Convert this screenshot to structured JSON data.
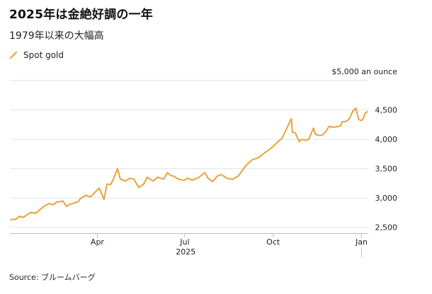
{
  "title": "2025年は金絶好調の一年",
  "subtitle": "1979年以来の大幅高",
  "source": "Source: ブルームバーグ",
  "colors": {
    "series": "#e8a33a",
    "grid": "#e3e3e3",
    "axis": "#bbbbbb"
  },
  "chart_data": {
    "type": "line",
    "unit_label": "$5,000 an ounce",
    "x_axis_year": "2025",
    "y_ticks": [
      2500,
      3000,
      3500,
      4000,
      4500,
      5000
    ],
    "y_tick_labels": [
      "2,500",
      "3,000",
      "3,500",
      "4,000",
      "4,500",
      ""
    ],
    "ylim": [
      2400,
      5000
    ],
    "xlim": [
      "2024-12-31",
      "2026-01-08"
    ],
    "x_ticks": [
      {
        "date": "2025-04-01",
        "label": "Apr"
      },
      {
        "date": "2025-07-01",
        "label": "Jul"
      },
      {
        "date": "2025-10-01",
        "label": "Oct"
      },
      {
        "date": "2026-01-01",
        "label": "Jan"
      }
    ],
    "grid": true,
    "series": [
      {
        "name": "Spot gold",
        "points": [
          [
            "2025-01-01",
            2625
          ],
          [
            "2025-01-03",
            2640
          ],
          [
            "2025-01-06",
            2635
          ],
          [
            "2025-01-10",
            2690
          ],
          [
            "2025-01-14",
            2670
          ],
          [
            "2025-01-17",
            2705
          ],
          [
            "2025-01-22",
            2755
          ],
          [
            "2025-01-27",
            2740
          ],
          [
            "2025-01-31",
            2800
          ],
          [
            "2025-02-05",
            2865
          ],
          [
            "2025-02-10",
            2905
          ],
          [
            "2025-02-14",
            2885
          ],
          [
            "2025-02-18",
            2935
          ],
          [
            "2025-02-21",
            2935
          ],
          [
            "2025-02-24",
            2950
          ],
          [
            "2025-02-28",
            2858
          ],
          [
            "2025-03-03",
            2890
          ],
          [
            "2025-03-07",
            2910
          ],
          [
            "2025-03-12",
            2935
          ],
          [
            "2025-03-14",
            2985
          ],
          [
            "2025-03-20",
            3045
          ],
          [
            "2025-03-25",
            3020
          ],
          [
            "2025-03-31",
            3124
          ],
          [
            "2025-04-03",
            3167
          ],
          [
            "2025-04-08",
            2975
          ],
          [
            "2025-04-11",
            3237
          ],
          [
            "2025-04-15",
            3230
          ],
          [
            "2025-04-18",
            3330
          ],
          [
            "2025-04-22",
            3500
          ],
          [
            "2025-04-25",
            3320
          ],
          [
            "2025-04-30",
            3290
          ],
          [
            "2025-05-05",
            3335
          ],
          [
            "2025-05-09",
            3325
          ],
          [
            "2025-05-14",
            3180
          ],
          [
            "2025-05-19",
            3230
          ],
          [
            "2025-05-23",
            3355
          ],
          [
            "2025-05-29",
            3290
          ],
          [
            "2025-06-03",
            3355
          ],
          [
            "2025-06-09",
            3320
          ],
          [
            "2025-06-13",
            3430
          ],
          [
            "2025-06-16",
            3385
          ],
          [
            "2025-06-20",
            3370
          ],
          [
            "2025-06-24",
            3322
          ],
          [
            "2025-06-30",
            3300
          ],
          [
            "2025-07-04",
            3335
          ],
          [
            "2025-07-09",
            3305
          ],
          [
            "2025-07-15",
            3345
          ],
          [
            "2025-07-22",
            3430
          ],
          [
            "2025-07-25",
            3340
          ],
          [
            "2025-07-30",
            3280
          ],
          [
            "2025-08-04",
            3375
          ],
          [
            "2025-08-08",
            3400
          ],
          [
            "2025-08-14",
            3335
          ],
          [
            "2025-08-20",
            3320
          ],
          [
            "2025-08-26",
            3380
          ],
          [
            "2025-08-29",
            3450
          ],
          [
            "2025-09-03",
            3560
          ],
          [
            "2025-09-09",
            3650
          ],
          [
            "2025-09-16",
            3690
          ],
          [
            "2025-09-23",
            3780
          ],
          [
            "2025-09-30",
            3860
          ],
          [
            "2025-10-06",
            3960
          ],
          [
            "2025-10-10",
            4010
          ],
          [
            "2025-10-14",
            4145
          ],
          [
            "2025-10-17",
            4250
          ],
          [
            "2025-10-20",
            4350
          ],
          [
            "2025-10-21",
            4120
          ],
          [
            "2025-10-24",
            4110
          ],
          [
            "2025-10-28",
            3960
          ],
          [
            "2025-10-31",
            4000
          ],
          [
            "2025-11-04",
            3980
          ],
          [
            "2025-11-07",
            4000
          ],
          [
            "2025-11-12",
            4190
          ],
          [
            "2025-11-14",
            4085
          ],
          [
            "2025-11-18",
            4065
          ],
          [
            "2025-11-21",
            4070
          ],
          [
            "2025-11-25",
            4135
          ],
          [
            "2025-11-28",
            4220
          ],
          [
            "2025-12-02",
            4205
          ],
          [
            "2025-12-05",
            4210
          ],
          [
            "2025-12-10",
            4225
          ],
          [
            "2025-12-12",
            4300
          ],
          [
            "2025-12-16",
            4305
          ],
          [
            "2025-12-19",
            4340
          ],
          [
            "2025-12-23",
            4480
          ],
          [
            "2025-12-26",
            4530
          ],
          [
            "2025-12-29",
            4340
          ],
          [
            "2025-12-31",
            4320
          ],
          [
            "2026-01-02",
            4330
          ],
          [
            "2026-01-05",
            4450
          ],
          [
            "2026-01-07",
            4470
          ]
        ]
      }
    ]
  }
}
